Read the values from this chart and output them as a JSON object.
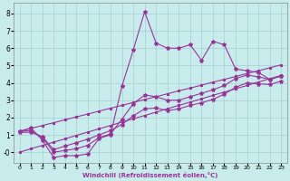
{
  "xlabel": "Windchill (Refroidissement éolien,°C)",
  "background_color": "#c8ecec",
  "grid_color": "#aad4d4",
  "line_color": "#993399",
  "x_data": [
    0,
    1,
    2,
    3,
    4,
    5,
    6,
    7,
    8,
    9,
    10,
    11,
    12,
    13,
    14,
    15,
    16,
    17,
    18,
    19,
    20,
    21,
    22,
    23
  ],
  "line1": [
    1.2,
    1.4,
    0.7,
    -0.3,
    -0.2,
    -0.2,
    -0.1,
    0.8,
    1.0,
    3.8,
    5.9,
    8.1,
    6.3,
    6.0,
    6.0,
    6.2,
    5.3,
    6.4,
    6.2,
    4.8,
    4.7,
    4.6,
    4.2,
    4.4
  ],
  "line2": [
    1.2,
    1.25,
    0.85,
    0.0,
    0.1,
    0.2,
    0.4,
    0.85,
    1.05,
    1.9,
    2.8,
    3.3,
    3.2,
    3.0,
    3.0,
    3.2,
    3.4,
    3.6,
    3.85,
    4.25,
    4.45,
    4.35,
    4.2,
    4.4
  ],
  "line3": [
    1.15,
    1.15,
    0.9,
    0.15,
    0.35,
    0.55,
    0.75,
    1.0,
    1.25,
    1.6,
    2.1,
    2.5,
    2.55,
    2.4,
    2.5,
    2.7,
    2.85,
    3.05,
    3.35,
    3.75,
    4.0,
    3.95,
    3.9,
    4.1
  ],
  "line_straight_low": [
    0.0,
    0.2,
    0.39,
    0.58,
    0.77,
    0.97,
    1.16,
    1.35,
    1.54,
    1.74,
    1.93,
    2.12,
    2.31,
    2.51,
    2.7,
    2.89,
    3.08,
    3.28,
    3.47,
    3.66,
    3.85,
    4.05,
    4.24,
    4.43
  ],
  "line_straight_high": [
    1.2,
    1.37,
    1.54,
    1.7,
    1.87,
    2.04,
    2.2,
    2.37,
    2.54,
    2.7,
    2.87,
    3.04,
    3.2,
    3.37,
    3.54,
    3.7,
    3.87,
    4.04,
    4.2,
    4.37,
    4.54,
    4.7,
    4.87,
    5.04
  ],
  "xlim": [
    -0.5,
    23.5
  ],
  "ylim": [
    -0.6,
    8.6
  ],
  "xticks": [
    0,
    1,
    2,
    3,
    4,
    5,
    6,
    7,
    8,
    9,
    10,
    11,
    12,
    13,
    14,
    15,
    16,
    17,
    18,
    19,
    20,
    21,
    22,
    23
  ],
  "yticks": [
    0,
    1,
    2,
    3,
    4,
    5,
    6,
    7,
    8
  ],
  "marker": "*"
}
